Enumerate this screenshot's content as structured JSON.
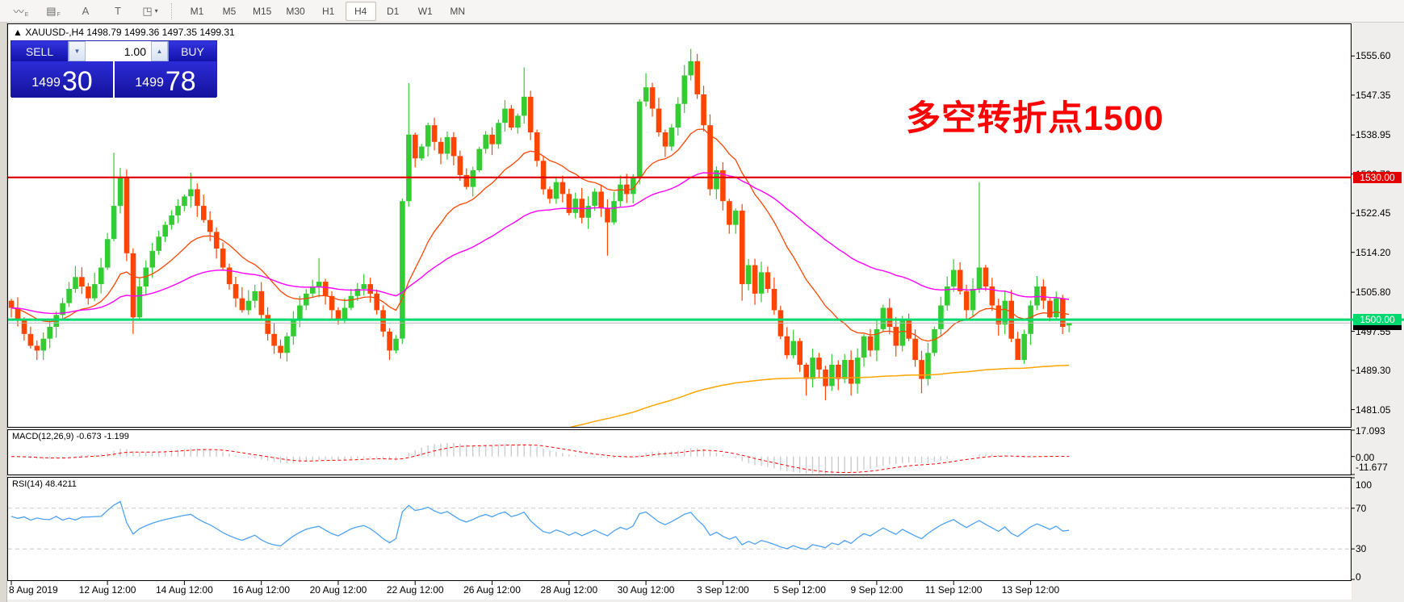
{
  "toolbar": {
    "tools": [
      {
        "name": "indicators-icon",
        "glyph": "〰",
        "sub": "E"
      },
      {
        "name": "grid-icon",
        "glyph": "▤",
        "sub": "F"
      },
      {
        "name": "text-label-icon",
        "glyph": "A",
        "sub": ""
      },
      {
        "name": "text-box-icon",
        "glyph": "T",
        "sub": ""
      },
      {
        "name": "shapes-icon",
        "glyph": "◳",
        "sub": "▾"
      }
    ],
    "timeframes": [
      "M1",
      "M5",
      "M15",
      "M30",
      "H1",
      "H4",
      "D1",
      "W1",
      "MN"
    ],
    "active_timeframe": "H4"
  },
  "header": {
    "symbol_line": "▲  XAUUSD-,H4   1498.79 1499.36 1497.35 1499.31"
  },
  "trade_panel": {
    "sell_label": "SELL",
    "buy_label": "BUY",
    "volume": "1.00",
    "spin_down": "▼",
    "spin_up": "▲",
    "sell_price_small": "1499",
    "sell_price_big": "30",
    "buy_price_small": "1499",
    "buy_price_big": "78"
  },
  "annotation": {
    "text": "多空转折点1500",
    "color": "#fd0000"
  },
  "y_axis": {
    "top_price": 1562.3,
    "bottom_price": 1477.4,
    "ticks": [
      "1555.60",
      "1547.35",
      "1538.95",
      "1530.70",
      "1522.45",
      "1514.20",
      "1505.80",
      "1497.55",
      "1489.30",
      "1481.05"
    ]
  },
  "levels": {
    "red_line": {
      "price": 1530.0,
      "label": "1530.00",
      "color": "#e30000"
    },
    "green_line": {
      "price": 1500.0,
      "label": "1500.00",
      "color": "#00d96e"
    },
    "bid_line": {
      "price": 1499.31,
      "color": "#b4b4b4",
      "tag_color": "#000000"
    }
  },
  "x_axis": {
    "labels": [
      {
        "bar": 0,
        "text": "8 Aug 2019"
      },
      {
        "bar": 15,
        "text": "12 Aug 12:00"
      },
      {
        "bar": 27,
        "text": "14 Aug 12:00"
      },
      {
        "bar": 39,
        "text": "16 Aug 12:00"
      },
      {
        "bar": 51,
        "text": "20 Aug 12:00"
      },
      {
        "bar": 63,
        "text": "22 Aug 12:00"
      },
      {
        "bar": 75,
        "text": "26 Aug 12:00"
      },
      {
        "bar": 87,
        "text": "28 Aug 12:00"
      },
      {
        "bar": 99,
        "text": "30 Aug 12:00"
      },
      {
        "bar": 111,
        "text": "3 Sep 12:00"
      },
      {
        "bar": 123,
        "text": "5 Sep 12:00"
      },
      {
        "bar": 135,
        "text": "9 Sep 12:00"
      },
      {
        "bar": 147,
        "text": "11 Sep 12:00"
      },
      {
        "bar": 159,
        "text": "13 Sep 12:00"
      }
    ]
  },
  "macd_panel": {
    "label": "MACD(12,26,9) -0.673 -1.199",
    "axis": [
      {
        "value": 17.093,
        "text": "17.093"
      },
      {
        "value": 0,
        "text": "0.00"
      },
      {
        "value": -11.677,
        "text": "-11.677"
      }
    ],
    "range": [
      -11.677,
      17.093
    ]
  },
  "rsi_panel": {
    "label": "RSI(14) 48.4211",
    "axis": [
      {
        "value": 100,
        "text": "100"
      },
      {
        "value": 70,
        "text": "70"
      },
      {
        "value": 30,
        "text": "30"
      },
      {
        "value": 0,
        "text": "0"
      }
    ],
    "dashed_levels": [
      70,
      30
    ]
  },
  "chart_data": {
    "type": "candlestick",
    "symbol": "XAUUSD-",
    "period": "H4",
    "colors": {
      "up": "#33cc33",
      "down": "#ff4500",
      "ma_fast": "#ff4500",
      "ma_mid": "#ff00ff",
      "ma_slow": "#ffa500",
      "macd_hist": "#cccccc",
      "macd_signal": "#ff0000",
      "rsi": "#4da2f5"
    },
    "last_candle": {
      "open": 1498.79,
      "high": 1499.36,
      "low": 1497.35,
      "close": 1499.31
    },
    "closes": [
      1502.5,
      1500,
      1497,
      1494.5,
      1493.5,
      1496,
      1498.5,
      1501,
      1503.5,
      1506.5,
      1509,
      1507,
      1504.5,
      1507.5,
      1511,
      1517,
      1524,
      1530,
      1514,
      1500.5,
      1507,
      1511,
      1514.5,
      1517.5,
      1520,
      1522,
      1524,
      1526,
      1527.5,
      1524,
      1521,
      1518.5,
      1515,
      1511,
      1507.5,
      1504.5,
      1502,
      1504,
      1506,
      1501,
      1497,
      1494.5,
      1493,
      1496.5,
      1500,
      1503,
      1505.5,
      1507,
      1508,
      1505,
      1502,
      1500,
      1502.5,
      1505,
      1506.5,
      1507.5,
      1505.5,
      1502,
      1497.5,
      1493.5,
      1496,
      1525,
      1539,
      1534,
      1536.5,
      1541,
      1537.5,
      1535,
      1538.5,
      1534.5,
      1530.5,
      1528,
      1531.5,
      1536,
      1539,
      1537,
      1541.5,
      1544.5,
      1540.5,
      1543,
      1547,
      1539.5,
      1533.5,
      1527.5,
      1525.5,
      1529,
      1526.5,
      1522.5,
      1525.5,
      1521.5,
      1524,
      1527,
      1523.5,
      1520.5,
      1525,
      1528.5,
      1526.5,
      1530,
      1546,
      1549,
      1544.5,
      1539.5,
      1536.5,
      1540.5,
      1545.5,
      1551.5,
      1554.5,
      1547.5,
      1541,
      1527.5,
      1531.5,
      1525,
      1520,
      1523,
      1507.5,
      1511.5,
      1505.5,
      1510,
      1506.5,
      1502,
      1496.5,
      1492.5,
      1495.5,
      1490.5,
      1487.5,
      1492,
      1489.5,
      1486,
      1490.5,
      1487.5,
      1491.5,
      1486.5,
      1492,
      1496.5,
      1493.5,
      1498,
      1502.5,
      1498.5,
      1494.5,
      1500,
      1496,
      1491.5,
      1487.5,
      1493,
      1498,
      1503,
      1507,
      1510.5,
      1506,
      1502,
      1506.5,
      1511,
      1507,
      1503,
      1499,
      1504,
      1496,
      1491.5,
      1497,
      1503,
      1507,
      1504,
      1500.5,
      1504.5,
      1498.5,
      1499.31
    ],
    "wick_overrides": {
      "4": {
        "low": 1491.5
      },
      "16": {
        "high": 1535.2
      },
      "17": {
        "high": 1532
      },
      "19": {
        "low": 1497
      },
      "28": {
        "high": 1531
      },
      "42": {
        "low": 1491.8
      },
      "48": {
        "high": 1513
      },
      "59": {
        "low": 1491.5
      },
      "62": {
        "high": 1549.9
      },
      "80": {
        "high": 1553.2
      },
      "93": {
        "low": 1513.5
      },
      "99": {
        "high": 1552
      },
      "106": {
        "high": 1557.1
      },
      "114": {
        "low": 1504
      },
      "124": {
        "low": 1484
      },
      "127": {
        "low": 1483
      },
      "131": {
        "low": 1484
      },
      "142": {
        "low": 1484.5
      },
      "151": {
        "high": 1529
      },
      "157": {
        "low": 1493
      }
    }
  }
}
